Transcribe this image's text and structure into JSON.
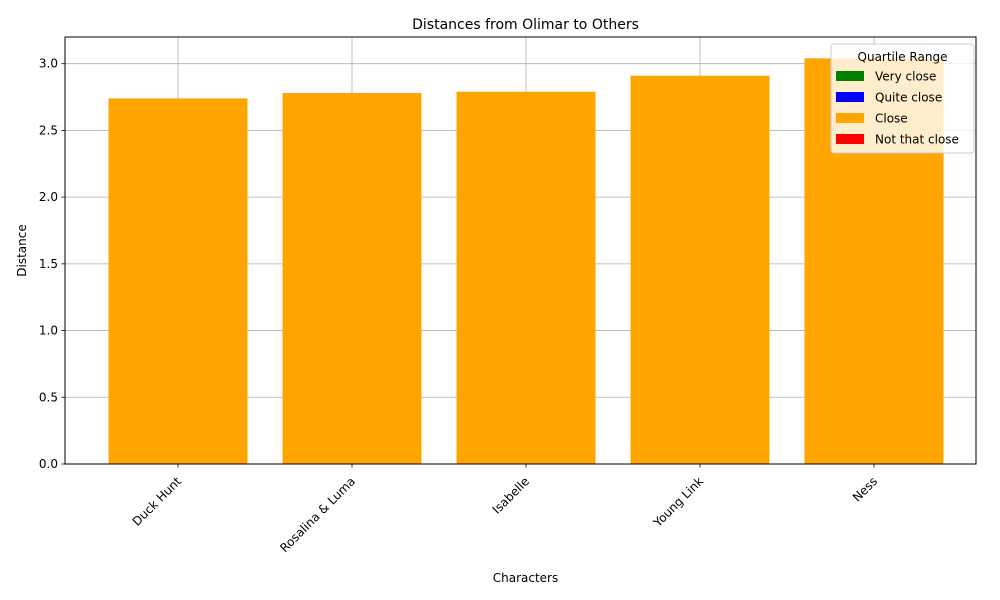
{
  "chart_data": {
    "type": "bar",
    "title": "Distances from Olimar to Others",
    "xlabel": "Characters",
    "ylabel": "Distance",
    "categories": [
      "Duck Hunt",
      "Rosalina & Luma",
      "Isabelle",
      "Young Link",
      "Ness"
    ],
    "values": [
      2.74,
      2.78,
      2.79,
      2.91,
      3.04
    ],
    "bar_colors": [
      "#ffa500",
      "#ffa500",
      "#ffa500",
      "#ffa500",
      "#ffa500"
    ],
    "ylim": [
      0,
      3.2
    ],
    "yticks": [
      "0.0",
      "0.5",
      "1.0",
      "1.5",
      "2.0",
      "2.5",
      "3.0"
    ],
    "grid": true,
    "legend": {
      "title": "Quartile Range",
      "placement": "top-right",
      "entries": [
        {
          "label": "Very close",
          "color": "#008000"
        },
        {
          "label": "Quite close",
          "color": "#0000ff"
        },
        {
          "label": "Close",
          "color": "#ffa500"
        },
        {
          "label": "Not that close",
          "color": "#ff0000"
        }
      ]
    }
  }
}
